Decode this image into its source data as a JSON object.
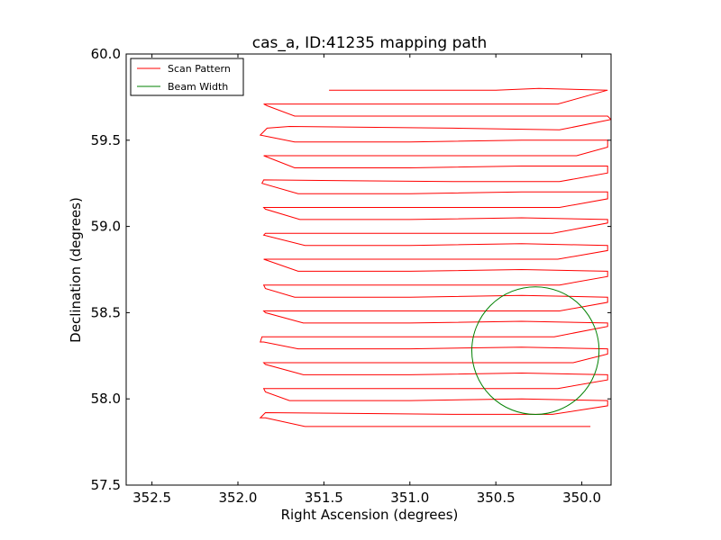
{
  "chart_data": {
    "type": "line",
    "title": "cas_a, ID:41235 mapping path",
    "xlabel": "Right Ascension (degrees)",
    "ylabel": "Declination (degrees)",
    "xlim": [
      352.65,
      349.83
    ],
    "ylim": [
      57.5,
      60.0
    ],
    "xticks": [
      352.5,
      352.0,
      351.5,
      351.0,
      350.5,
      350.0
    ],
    "xtick_labels": [
      "352.5",
      "352.0",
      "351.5",
      "351.0",
      "350.5",
      "350.0"
    ],
    "yticks": [
      57.5,
      58.0,
      58.5,
      59.0,
      59.5,
      60.0
    ],
    "ytick_labels": [
      "57.5",
      "58.0",
      "58.5",
      "59.0",
      "59.5",
      "60.0"
    ],
    "grid": false,
    "legend_position": "top-left",
    "series": [
      {
        "name": "Scan Pattern",
        "color": "#ff0000",
        "points": [
          [
            351.47,
            59.79
          ],
          [
            350.5,
            59.79
          ],
          [
            350.25,
            59.8
          ],
          [
            349.85,
            59.79
          ],
          [
            350.14,
            59.71
          ],
          [
            350.75,
            59.71
          ],
          [
            351.85,
            59.71
          ],
          [
            351.83,
            59.7
          ],
          [
            351.67,
            59.64
          ],
          [
            351.0,
            59.64
          ],
          [
            350.35,
            59.64
          ],
          [
            349.85,
            59.64
          ],
          [
            349.83,
            59.62
          ],
          [
            350.13,
            59.56
          ],
          [
            350.75,
            59.57
          ],
          [
            351.7,
            59.58
          ],
          [
            351.83,
            59.57
          ],
          [
            351.87,
            59.53
          ],
          [
            351.82,
            59.52
          ],
          [
            351.67,
            59.49
          ],
          [
            351.0,
            59.49
          ],
          [
            350.35,
            59.5
          ],
          [
            349.85,
            59.5
          ],
          [
            349.85,
            59.46
          ],
          [
            350.03,
            59.41
          ],
          [
            350.75,
            59.41
          ],
          [
            351.85,
            59.41
          ],
          [
            351.67,
            59.34
          ],
          [
            351.0,
            59.34
          ],
          [
            350.35,
            59.35
          ],
          [
            349.85,
            59.35
          ],
          [
            349.85,
            59.31
          ],
          [
            350.13,
            59.26
          ],
          [
            350.75,
            59.26
          ],
          [
            351.85,
            59.27
          ],
          [
            351.86,
            59.25
          ],
          [
            351.65,
            59.19
          ],
          [
            351.0,
            59.19
          ],
          [
            350.35,
            59.2
          ],
          [
            349.85,
            59.2
          ],
          [
            349.85,
            59.16
          ],
          [
            350.13,
            59.11
          ],
          [
            350.75,
            59.11
          ],
          [
            351.85,
            59.11
          ],
          [
            351.84,
            59.1
          ],
          [
            351.64,
            59.04
          ],
          [
            351.0,
            59.04
          ],
          [
            350.35,
            59.05
          ],
          [
            349.85,
            59.04
          ],
          [
            349.85,
            59.02
          ],
          [
            350.17,
            58.96
          ],
          [
            350.75,
            58.96
          ],
          [
            351.84,
            58.96
          ],
          [
            351.85,
            58.95
          ],
          [
            351.61,
            58.89
          ],
          [
            351.0,
            58.89
          ],
          [
            350.35,
            58.9
          ],
          [
            349.85,
            58.89
          ],
          [
            349.85,
            58.86
          ],
          [
            350.14,
            58.81
          ],
          [
            350.75,
            58.81
          ],
          [
            351.85,
            58.81
          ],
          [
            351.65,
            58.74
          ],
          [
            351.0,
            58.74
          ],
          [
            350.35,
            58.75
          ],
          [
            349.85,
            58.74
          ],
          [
            349.85,
            58.71
          ],
          [
            350.13,
            58.66
          ],
          [
            350.75,
            58.66
          ],
          [
            351.85,
            58.66
          ],
          [
            351.84,
            58.64
          ],
          [
            351.67,
            58.59
          ],
          [
            351.0,
            58.59
          ],
          [
            350.35,
            58.6
          ],
          [
            349.85,
            58.59
          ],
          [
            349.85,
            58.56
          ],
          [
            350.13,
            58.51
          ],
          [
            350.75,
            58.51
          ],
          [
            351.85,
            58.51
          ],
          [
            351.84,
            58.5
          ],
          [
            351.62,
            58.44
          ],
          [
            351.0,
            58.44
          ],
          [
            350.35,
            58.45
          ],
          [
            349.85,
            58.44
          ],
          [
            349.85,
            58.42
          ],
          [
            350.16,
            58.36
          ],
          [
            350.75,
            58.36
          ],
          [
            351.86,
            58.36
          ],
          [
            351.87,
            58.33
          ],
          [
            351.85,
            58.33
          ],
          [
            351.65,
            58.29
          ],
          [
            351.0,
            58.29
          ],
          [
            350.35,
            58.3
          ],
          [
            349.85,
            58.29
          ],
          [
            349.85,
            58.26
          ],
          [
            350.05,
            58.21
          ],
          [
            350.75,
            58.21
          ],
          [
            351.85,
            58.21
          ],
          [
            351.84,
            58.2
          ],
          [
            351.62,
            58.14
          ],
          [
            351.0,
            58.14
          ],
          [
            350.35,
            58.15
          ],
          [
            349.85,
            58.14
          ],
          [
            349.85,
            58.11
          ],
          [
            350.14,
            58.06
          ],
          [
            350.75,
            58.06
          ],
          [
            351.85,
            58.06
          ],
          [
            351.84,
            58.04
          ],
          [
            351.7,
            57.99
          ],
          [
            351.0,
            57.99
          ],
          [
            350.35,
            58.0
          ],
          [
            349.85,
            57.99
          ],
          [
            349.85,
            57.96
          ],
          [
            350.17,
            57.91
          ],
          [
            350.75,
            57.91
          ],
          [
            351.84,
            57.92
          ],
          [
            351.87,
            57.89
          ],
          [
            351.84,
            57.89
          ],
          [
            351.61,
            57.84
          ],
          [
            351.0,
            57.84
          ],
          [
            350.5,
            57.84
          ],
          [
            349.95,
            57.84
          ]
        ]
      },
      {
        "name": "Beam Width",
        "color": "#008000",
        "shape": "circle",
        "center": [
          350.27,
          58.28
        ],
        "radius_x": 0.37,
        "radius_y": 0.37
      }
    ]
  }
}
